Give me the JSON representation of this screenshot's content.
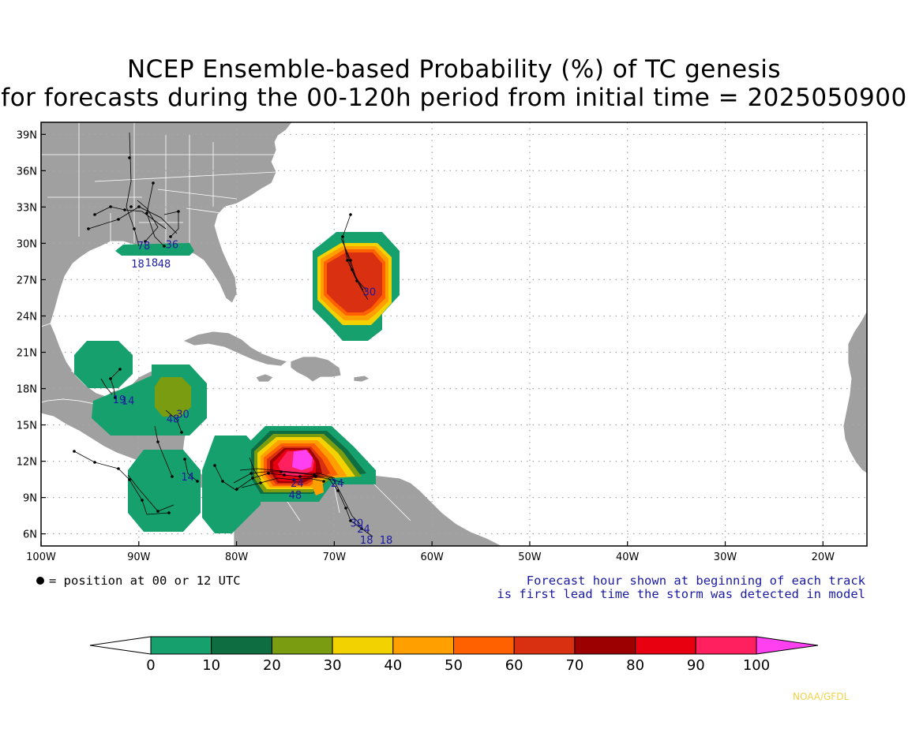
{
  "title": {
    "line1": "NCEP Ensemble-based Probability (%) of TC genesis",
    "line2": "for forecasts during the 00-120h period from initial time = 2025050900"
  },
  "axes": {
    "lat_labels": [
      "39N",
      "36N",
      "33N",
      "30N",
      "27N",
      "24N",
      "21N",
      "18N",
      "15N",
      "12N",
      "9N",
      "6N"
    ],
    "lat_values": [
      39,
      36,
      33,
      30,
      27,
      24,
      21,
      18,
      15,
      12,
      9,
      6
    ],
    "lon_labels": [
      "100W",
      "90W",
      "80W",
      "70W",
      "60W",
      "50W",
      "40W",
      "30W",
      "20W"
    ],
    "lon_values": [
      -100,
      -90,
      -80,
      -70,
      -60,
      -50,
      -40,
      -30,
      -20
    ],
    "lon_range": [
      -100,
      -15.5
    ],
    "lat_range": [
      5,
      40
    ]
  },
  "legend": {
    "dot_note": "= position at 00 or 12 UTC",
    "forecast_note_line1": "Forecast hour shown at beginning of each track",
    "forecast_note_line2": "is first lead time the storm was detected in model"
  },
  "colorbar": {
    "labels": [
      "0",
      "10",
      "20",
      "30",
      "40",
      "50",
      "60",
      "70",
      "80",
      "90",
      "100"
    ],
    "colors": [
      "#ffffff",
      "#16a06e",
      "#0e6e42",
      "#7a9c10",
      "#f2d200",
      "#ffa000",
      "#ff6000",
      "#d83010",
      "#9c0000",
      "#e80010",
      "#ff2060",
      "#ff40f0"
    ]
  },
  "colors": {
    "land": "#a0a0a0",
    "ocean": "#ffffff",
    "grid": "#a8a8a8",
    "track": "#000000",
    "track_label": "#1a1aa0",
    "border": "#ffffff"
  },
  "track_labels": [
    {
      "text": "78",
      "lon": -89.5,
      "lat": 29.5
    },
    {
      "text": "36",
      "lon": -86.6,
      "lat": 29.6
    },
    {
      "text": "18",
      "lon": -90.1,
      "lat": 28.0
    },
    {
      "text": "18",
      "lon": -88.7,
      "lat": 28.1
    },
    {
      "text": "48",
      "lon": -87.4,
      "lat": 28.0
    },
    {
      "text": "19",
      "lon": -92.0,
      "lat": 16.8
    },
    {
      "text": "14",
      "lon": -91.1,
      "lat": 16.7
    },
    {
      "text": "48",
      "lon": -86.5,
      "lat": 15.2
    },
    {
      "text": "30",
      "lon": -85.5,
      "lat": 15.6
    },
    {
      "text": "14",
      "lon": -85.0,
      "lat": 10.4
    },
    {
      "text": "48",
      "lon": -74.0,
      "lat": 8.9
    },
    {
      "text": "24",
      "lon": -73.8,
      "lat": 9.9
    },
    {
      "text": "24",
      "lon": -69.7,
      "lat": 9.9
    },
    {
      "text": "30",
      "lon": -67.7,
      "lat": 6.6
    },
    {
      "text": "24",
      "lon": -67.0,
      "lat": 6.1
    },
    {
      "text": "18",
      "lon": -66.7,
      "lat": 5.2
    },
    {
      "text": "18",
      "lon": -64.7,
      "lat": 5.2
    },
    {
      "text": "30",
      "lon": -66.4,
      "lat": 25.7
    }
  ],
  "credit": "NOAA/GFDL"
}
